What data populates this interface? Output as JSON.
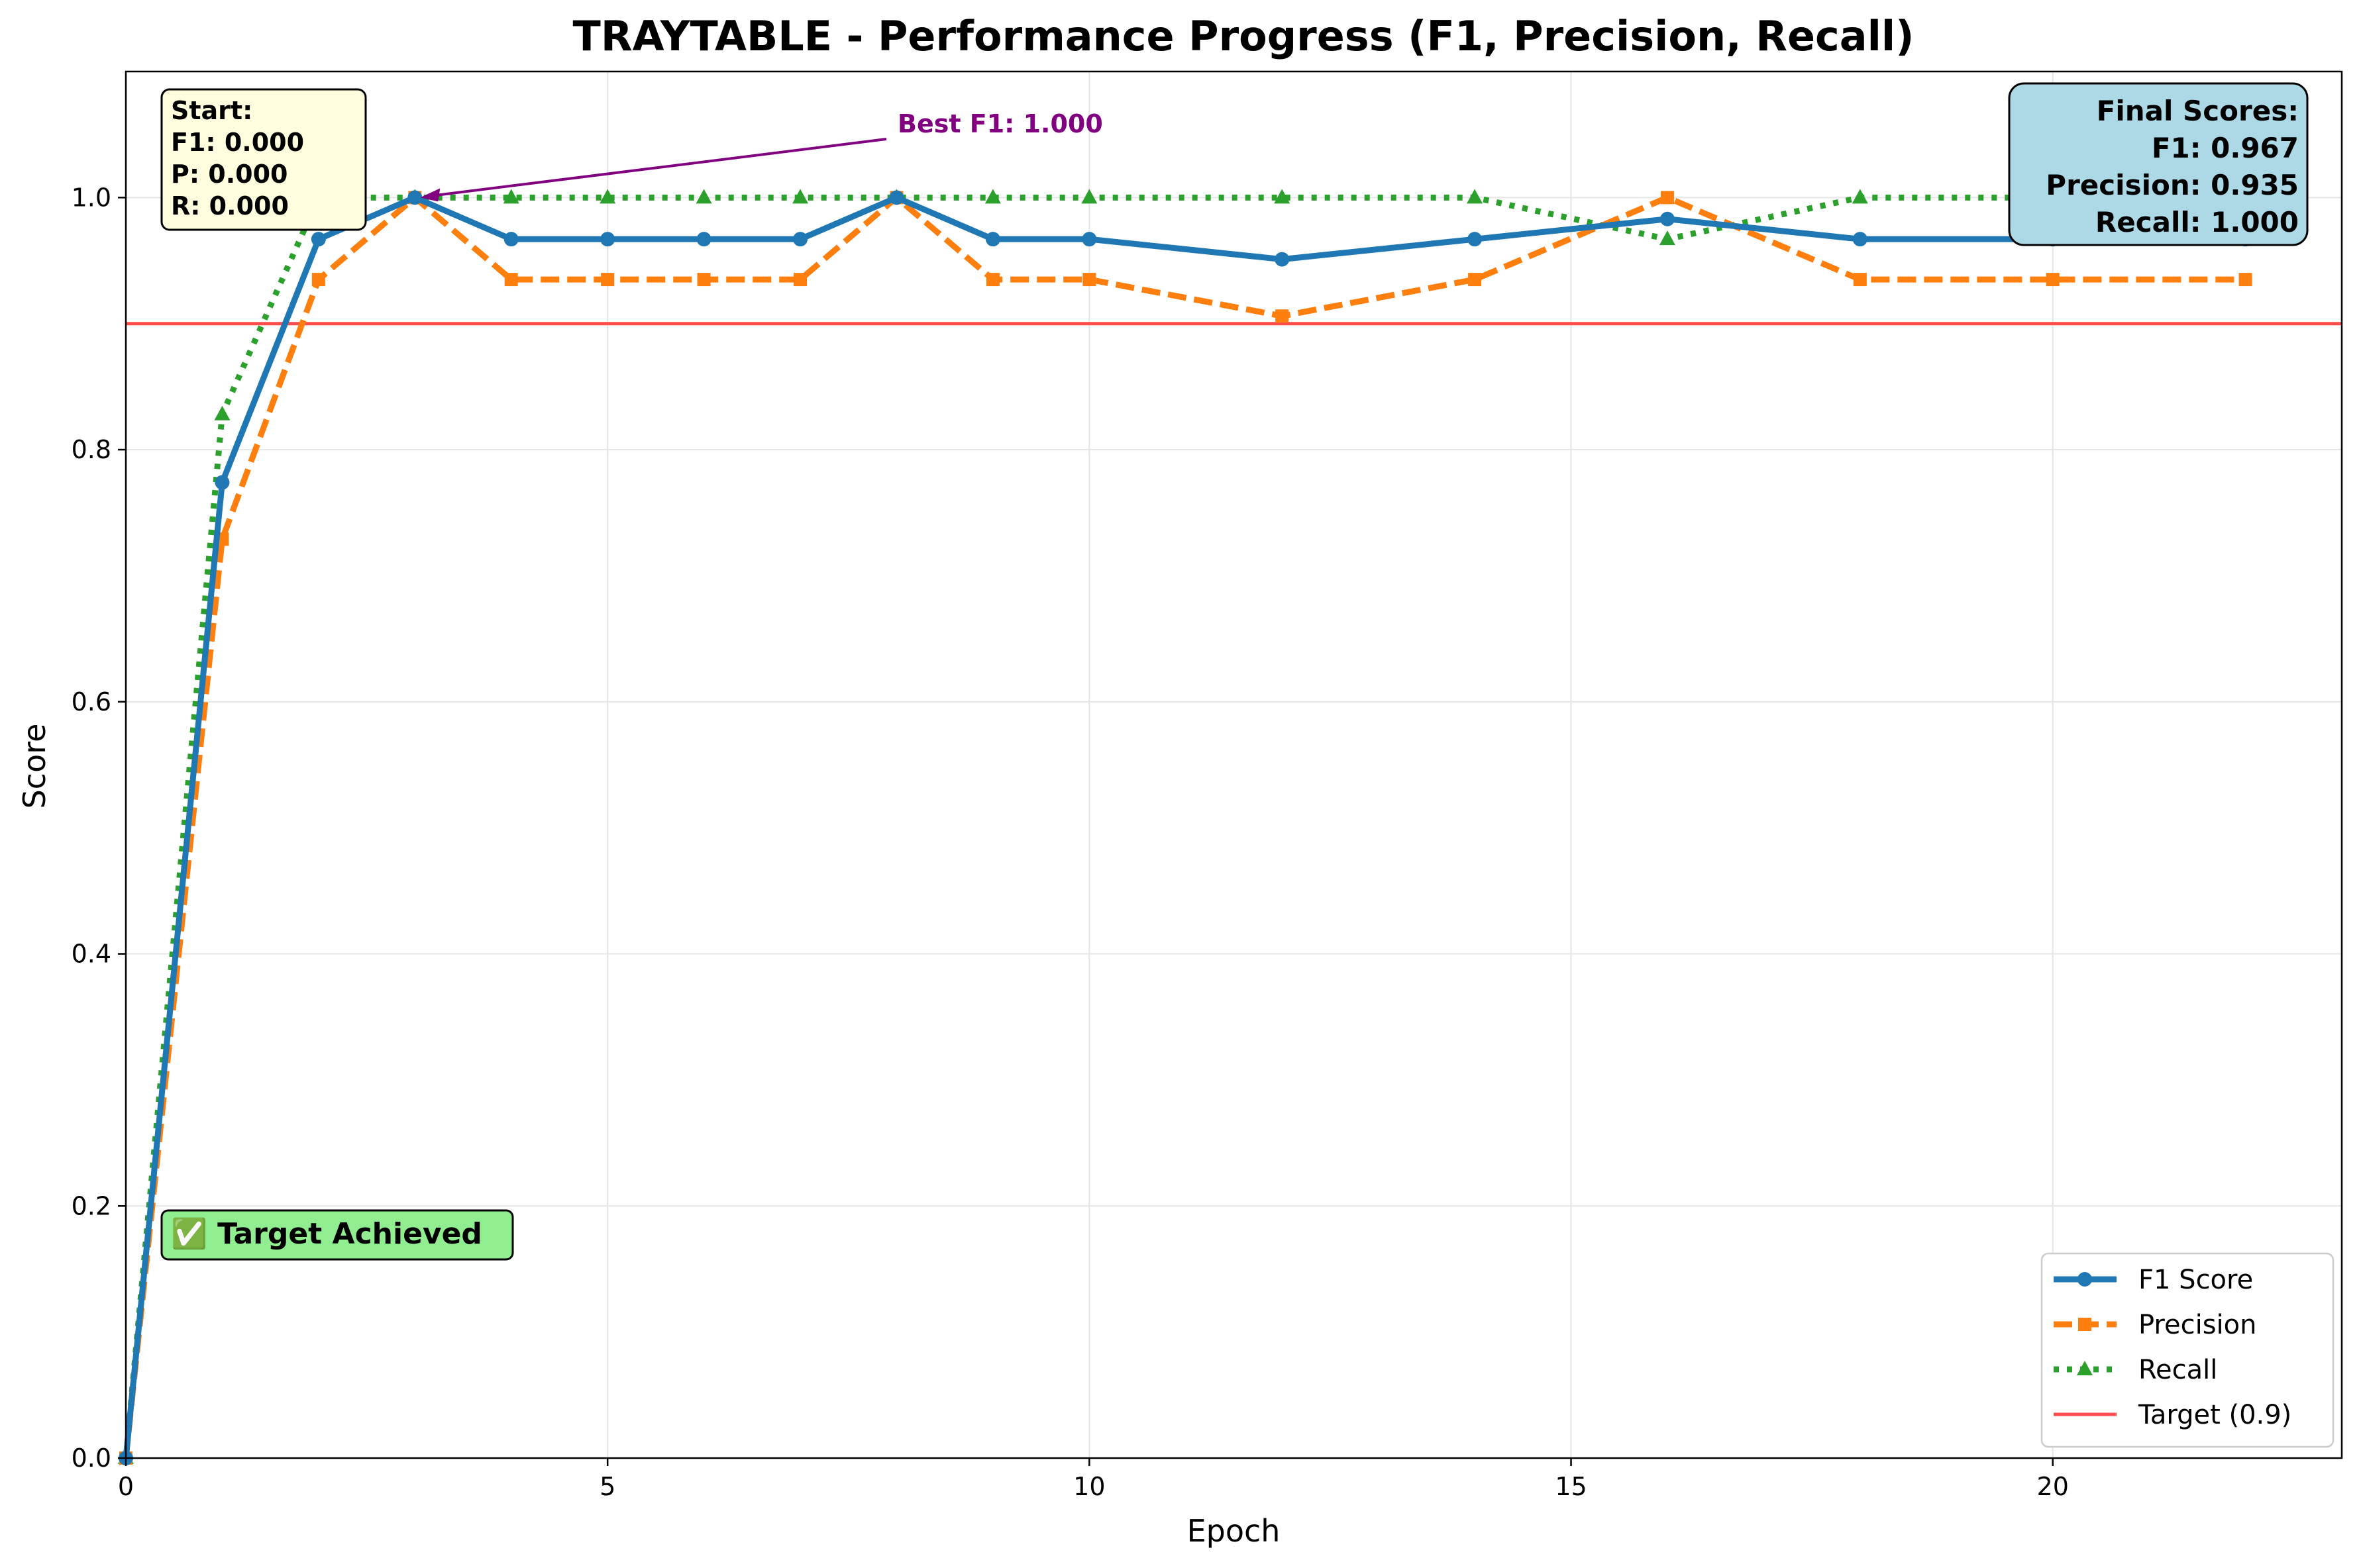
{
  "chart_data": {
    "type": "line",
    "title": "TRAYTABLE - Performance Progress (F1, Precision, Recall)",
    "xlabel": "Epoch",
    "ylabel": "Score",
    "xlim": [
      0,
      23
    ],
    "ylim": [
      0,
      1.1
    ],
    "xticks": [
      0,
      5,
      10,
      15,
      20
    ],
    "yticks": [
      0.0,
      0.2,
      0.4,
      0.6,
      0.8,
      1.0
    ],
    "grid": true,
    "legend_position": "lower-right",
    "x": [
      0,
      1,
      2,
      3,
      4,
      5,
      6,
      7,
      8,
      9,
      10,
      12,
      14,
      16,
      18,
      20,
      22
    ],
    "series": [
      {
        "name": "F1 Score",
        "color": "#1f77b4",
        "style": "solid",
        "marker": "circle",
        "values": [
          0.0,
          0.774,
          0.967,
          1.0,
          0.967,
          0.967,
          0.967,
          0.967,
          1.0,
          0.967,
          0.967,
          0.951,
          0.967,
          0.983,
          0.967,
          0.967,
          0.967
        ]
      },
      {
        "name": "Precision",
        "color": "#ff7f0e",
        "style": "dashed",
        "marker": "square",
        "values": [
          0.0,
          0.729,
          0.935,
          1.0,
          0.935,
          0.935,
          0.935,
          0.935,
          1.0,
          0.935,
          0.935,
          0.906,
          0.935,
          1.0,
          0.935,
          0.935,
          0.935
        ]
      },
      {
        "name": "Recall",
        "color": "#2ca02c",
        "style": "dotted",
        "marker": "triangle",
        "values": [
          0.0,
          0.828,
          1.0,
          1.0,
          1.0,
          1.0,
          1.0,
          1.0,
          1.0,
          1.0,
          1.0,
          1.0,
          1.0,
          0.967,
          1.0,
          1.0,
          1.0
        ]
      }
    ],
    "target": {
      "name": "Target (0.9)",
      "value": 0.9,
      "color": "#ff4d4d"
    },
    "annotations": {
      "best": {
        "text": "Best F1: 1.000",
        "x": 3,
        "y": 1.0,
        "color": "#800080"
      },
      "start_lines": [
        "Start:",
        "F1: 0.000",
        "P: 0.000",
        "R: 0.000"
      ],
      "final_lines": [
        "Final Scores:",
        "F1: 0.967",
        "Precision: 0.935",
        "Recall: 1.000"
      ],
      "target_achieved": "✅ Target Achieved"
    }
  }
}
